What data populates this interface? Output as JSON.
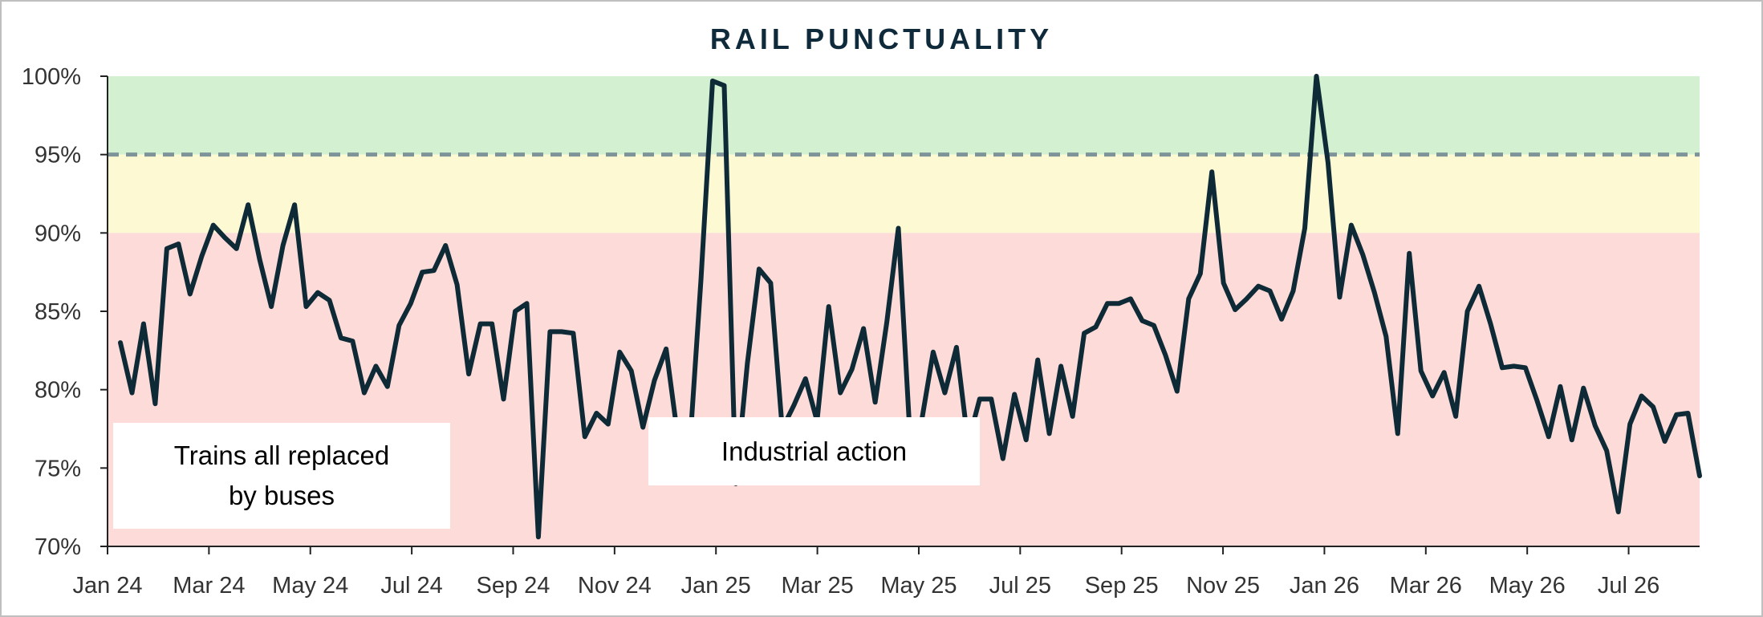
{
  "chart_data": {
    "type": "line",
    "title": "RAIL PUNCTUALITY",
    "xlabel": "",
    "ylabel": "",
    "ylim": [
      70,
      100
    ],
    "y_ticks": [
      "70%",
      "75%",
      "80%",
      "85%",
      "90%",
      "95%",
      "100%"
    ],
    "y_tick_values": [
      70,
      75,
      80,
      85,
      90,
      95,
      100
    ],
    "x_ticks": [
      "Jan 24",
      "Mar 24",
      "May 24",
      "Jul 24",
      "Sep 24",
      "Nov 24",
      "Jan 25",
      "Mar 25",
      "May 25",
      "Jul 25",
      "Sep 25",
      "Nov 25",
      "Jan 26",
      "Mar 26",
      "May 26",
      "Jul 26"
    ],
    "x_range": [
      "Jan 24",
      "Sep 26"
    ],
    "grid": false,
    "bands": [
      {
        "from": 95,
        "to": 100,
        "color": "#d3f0d0"
      },
      {
        "from": 90,
        "to": 95,
        "color": "#fdf9d3"
      },
      {
        "from": 70,
        "to": 90,
        "color": "#fddbd8"
      }
    ],
    "target_line": {
      "value": 95,
      "style": "dashed",
      "color": "#7f9499"
    },
    "line_color": "#0e2a36",
    "series": [
      {
        "name": "",
        "values": [
          83.0,
          79.8,
          84.2,
          79.1,
          89.0,
          89.3,
          86.1,
          88.5,
          90.5,
          89.7,
          89.0,
          91.8,
          88.3,
          85.3,
          89.2,
          91.8,
          85.3,
          86.2,
          85.7,
          83.3,
          83.1,
          79.8,
          81.5,
          80.2,
          84.1,
          85.5,
          87.5,
          87.6,
          89.2,
          86.7,
          81.0,
          84.2,
          84.2,
          79.4,
          85.0,
          85.5,
          70.6,
          83.7,
          83.7,
          83.6,
          77.0,
          78.5,
          77.8,
          82.4,
          81.2,
          77.6,
          80.6,
          82.6,
          77.0,
          76.0,
          87.0,
          99.7,
          99.4,
          74.0,
          81.7,
          87.7,
          86.8,
          77.5,
          79.0,
          80.7,
          78.0,
          85.3,
          79.8,
          81.3,
          83.9,
          79.2,
          84.3,
          90.3,
          77.0,
          78.0,
          82.4,
          79.8,
          82.7,
          76.6,
          79.4,
          79.4,
          75.6,
          79.7,
          76.8,
          81.9,
          77.2,
          81.5,
          78.3,
          83.6,
          84.0,
          85.5,
          85.5,
          85.8,
          84.4,
          84.1,
          82.2,
          79.9,
          85.8,
          87.4,
          93.9,
          86.8,
          85.1,
          85.8,
          86.6,
          86.3,
          84.5,
          86.3,
          90.3,
          100.0,
          94.5,
          85.9,
          90.5,
          88.6,
          86.2,
          83.4,
          77.2,
          88.7,
          81.2,
          79.6,
          81.1,
          78.3,
          85.0,
          86.6,
          84.2,
          81.4,
          81.5,
          81.4,
          79.3,
          77.0,
          80.2,
          76.8,
          80.1,
          77.7,
          76.1,
          72.2,
          77.8,
          79.6,
          78.9,
          76.7,
          78.4,
          78.5,
          74.5
        ]
      }
    ],
    "annotations": [
      {
        "text": "Trains all replaced by buses",
        "lines": [
          "Trains all replaced",
          "by buses"
        ]
      },
      {
        "text": "Industrial action",
        "lines": [
          "Industrial action"
        ]
      }
    ]
  }
}
